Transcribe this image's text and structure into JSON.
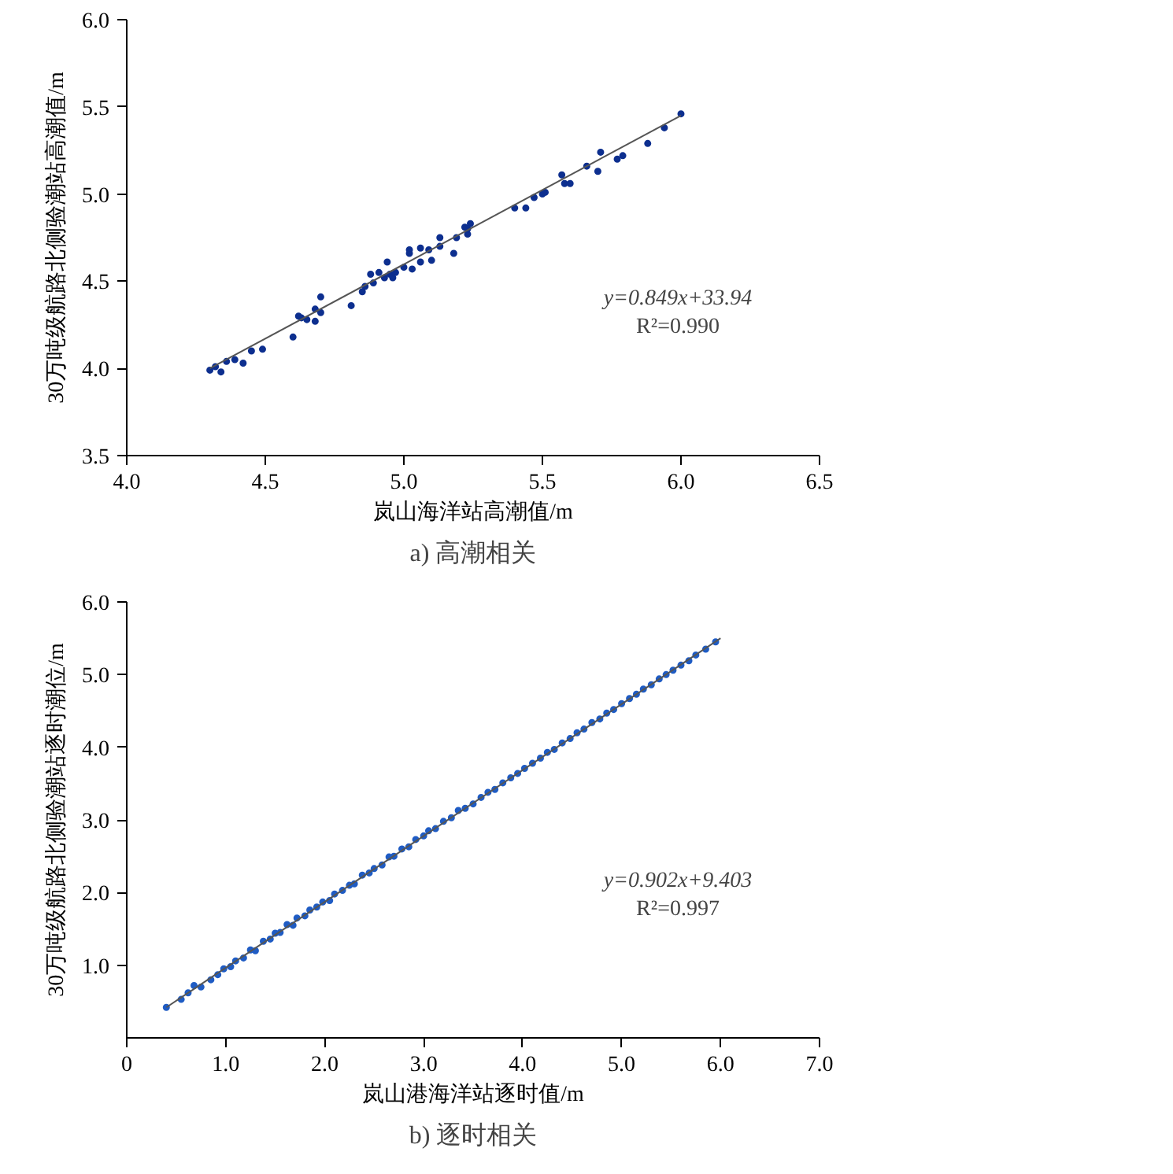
{
  "chart_data": [
    {
      "type": "scatter",
      "title": "a) 高潮相关",
      "xlabel": "岚山海洋站高潮值/m",
      "ylabel": "30万吨级航路北侧验潮站高潮值/m",
      "annotations": [
        "y=0.849x+33.94",
        "R²=0.990"
      ],
      "xlim": [
        4.0,
        6.5
      ],
      "ylim": [
        3.5,
        6.0
      ],
      "xticks": [
        {
          "value": 4,
          "label": "4.0"
        },
        {
          "value": 4.5,
          "label": "4.5"
        },
        {
          "value": 5,
          "label": "5.0"
        },
        {
          "value": 5.5,
          "label": "5.5"
        },
        {
          "value": 6,
          "label": "6.0"
        },
        {
          "value": 6.5,
          "label": "6.5"
        }
      ],
      "yticks": [
        {
          "value": 3.5,
          "label": "3.5"
        },
        {
          "value": 4,
          "label": "4.0"
        },
        {
          "value": 4.5,
          "label": "4.5"
        },
        {
          "value": 5,
          "label": "5.0"
        },
        {
          "value": 5.5,
          "label": "5.5"
        },
        {
          "value": 6,
          "label": "6.0"
        }
      ],
      "series": [
        {
          "marker": "circle",
          "color": "#0d2f8f",
          "x": [
            4.3,
            4.31,
            4.32,
            4.34,
            4.36,
            4.39,
            4.42,
            4.45,
            4.49,
            4.6,
            4.62,
            4.63,
            4.65,
            4.68,
            4.68,
            4.7,
            4.7,
            4.81,
            4.85,
            4.86,
            4.88,
            4.89,
            4.91,
            4.93,
            4.94,
            4.95,
            4.96,
            4.97,
            5.0,
            5.02,
            5.02,
            5.03,
            5.06,
            5.06,
            5.09,
            5.1,
            5.13,
            5.13,
            5.18,
            5.19,
            5.22,
            5.23,
            5.24,
            5.23,
            5.4,
            5.44,
            5.47,
            5.5,
            5.51,
            5.57,
            5.58,
            5.6,
            5.66,
            5.7,
            5.71,
            5.77,
            5.79,
            5.88,
            5.94,
            6.0
          ],
          "values": [
            3.99,
            null,
            4.01,
            3.98,
            4.04,
            4.05,
            4.03,
            4.1,
            4.11,
            4.18,
            4.3,
            4.29,
            4.28,
            4.27,
            4.34,
            4.32,
            4.41,
            4.36,
            4.44,
            4.47,
            4.54,
            4.49,
            4.55,
            4.52,
            4.61,
            4.54,
            4.52,
            4.55,
            4.58,
            4.66,
            4.68,
            4.57,
            4.69,
            4.61,
            4.68,
            4.62,
            4.75,
            4.7,
            4.66,
            4.75,
            4.81,
            4.77,
            4.83,
            4.8,
            4.92,
            4.92,
            4.98,
            5.0,
            5.01,
            5.11,
            5.06,
            5.06,
            5.16,
            5.13,
            5.24,
            5.2,
            5.22,
            5.29,
            5.38,
            5.46
          ]
        },
        {
          "type": "line",
          "marker": "none",
          "color": "#555555",
          "x": [
            4.3,
            6.0
          ],
          "values": [
            4.0,
            5.45
          ]
        }
      ]
    },
    {
      "type": "scatter",
      "title": "b) 逐时相关",
      "xlabel": "岚山港海洋站逐时值/m",
      "ylabel": "30万吨级航路北侧验潮站逐时潮位/m",
      "annotations": [
        "y=0.902x+9.403",
        "R²=0.997"
      ],
      "xlim": [
        0,
        7.0
      ],
      "ylim": [
        0,
        6.0
      ],
      "xticks": [
        0,
        {
          "value": 1,
          "label": "1.0"
        },
        {
          "value": 2,
          "label": "2.0"
        },
        {
          "value": 3,
          "label": "3.0"
        },
        {
          "value": 4,
          "label": "4.0"
        },
        {
          "value": 5,
          "label": "5.0"
        },
        {
          "value": 6,
          "label": "6.0"
        },
        {
          "value": 7,
          "label": "7.0"
        }
      ],
      "yticks": [
        {
          "value": 1,
          "label": "1.0"
        },
        {
          "value": 2,
          "label": "2.0"
        },
        {
          "value": 3,
          "label": "3.0"
        },
        {
          "value": 4,
          "label": "4.0"
        },
        {
          "value": 5,
          "label": "5.0"
        },
        {
          "value": 6,
          "label": "6.0"
        }
      ],
      "series": [
        {
          "marker": "circle",
          "color": "#1f5cc4",
          "x": [
            0.4,
            0.55,
            0.62,
            0.68,
            0.75,
            0.85,
            0.92,
            0.98,
            1.05,
            1.1,
            1.18,
            1.25,
            1.3,
            1.38,
            1.45,
            1.5,
            1.55,
            1.62,
            1.68,
            1.72,
            1.8,
            1.85,
            1.92,
            1.98,
            2.05,
            2.1,
            2.18,
            2.25,
            2.3,
            2.38,
            2.45,
            2.5,
            2.58,
            2.65,
            2.7,
            2.78,
            2.85,
            2.92,
            3.0,
            3.05,
            3.12,
            3.2,
            3.28,
            3.35,
            3.42,
            3.5,
            3.58,
            3.65,
            3.72,
            3.8,
            3.88,
            3.95,
            4.02,
            4.1,
            4.18,
            4.25,
            4.32,
            4.4,
            4.48,
            4.55,
            4.62,
            4.7,
            4.78,
            4.85,
            4.92,
            5.0,
            5.08,
            5.15,
            5.22,
            5.3,
            5.38,
            5.45,
            5.52,
            5.6,
            5.68,
            5.75,
            5.85,
            5.95
          ],
          "values": [
            0.42,
            0.53,
            0.62,
            0.72,
            0.7,
            0.8,
            0.87,
            0.95,
            0.98,
            1.06,
            1.1,
            1.21,
            1.2,
            1.33,
            1.36,
            1.44,
            1.45,
            1.56,
            1.55,
            1.65,
            1.68,
            1.76,
            1.8,
            1.87,
            1.89,
            1.98,
            2.03,
            2.1,
            2.12,
            2.24,
            2.27,
            2.33,
            2.38,
            2.49,
            2.5,
            2.6,
            2.63,
            2.73,
            2.78,
            2.85,
            2.88,
            2.98,
            3.03,
            3.13,
            3.16,
            3.22,
            3.31,
            3.38,
            3.42,
            3.51,
            3.58,
            3.64,
            3.71,
            3.78,
            3.85,
            3.93,
            3.97,
            4.06,
            4.12,
            4.2,
            4.25,
            4.34,
            4.39,
            4.47,
            4.52,
            4.6,
            4.67,
            4.73,
            4.8,
            4.86,
            4.94,
            5.0,
            5.06,
            5.13,
            5.19,
            5.27,
            5.35,
            5.45
          ]
        },
        {
          "type": "line",
          "marker": "none",
          "color": "#555555",
          "x": [
            0.4,
            6.0
          ],
          "values": [
            0.42,
            5.5
          ]
        }
      ]
    }
  ]
}
